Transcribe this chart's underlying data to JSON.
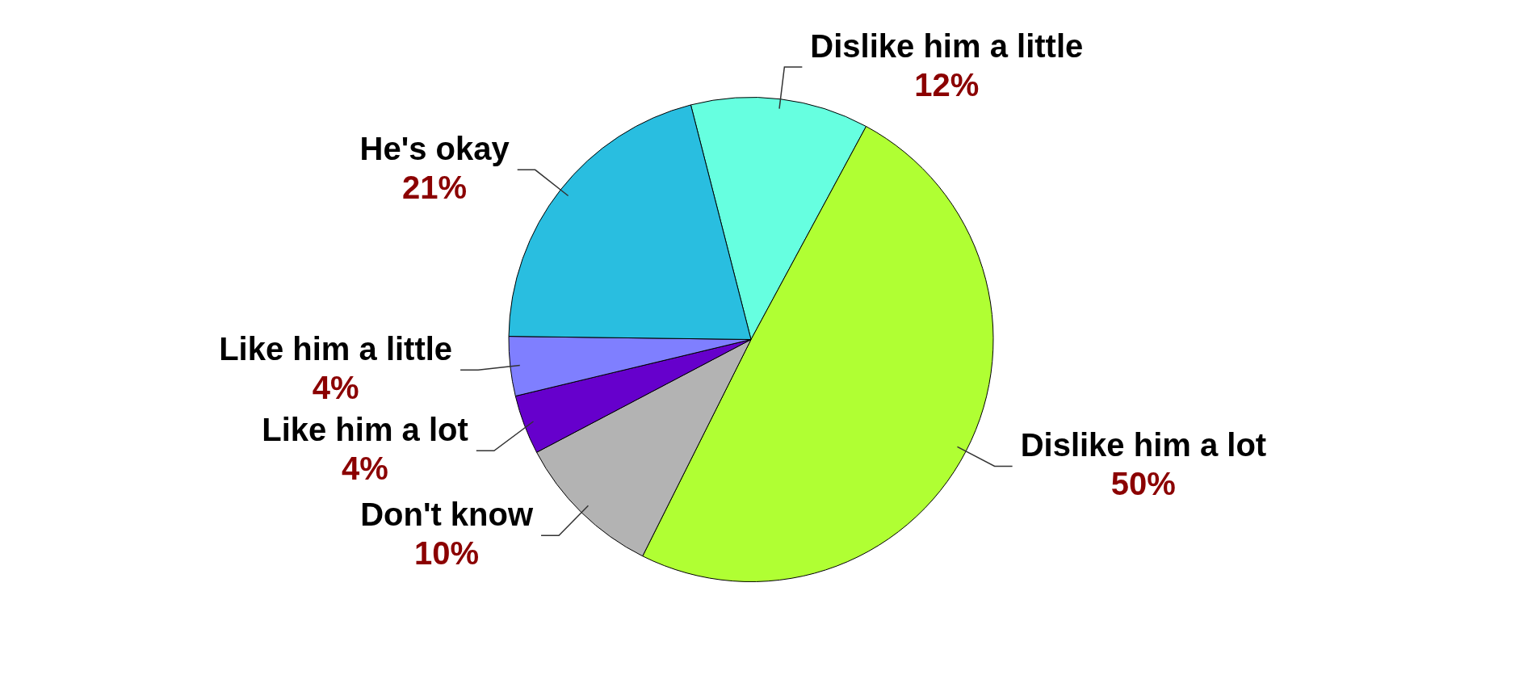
{
  "chart_data": {
    "type": "pie",
    "categories": [
      "Dislike him a little",
      "Dislike him a lot",
      "Don't know",
      "Like him a lot",
      "Like him a little",
      "He's okay"
    ],
    "values": [
      12,
      50,
      10,
      4,
      4,
      21
    ],
    "colors": [
      "#66ffe0",
      "#b0ff33",
      "#b3b3b3",
      "#6600cc",
      "#7f7fff",
      "#29bee0"
    ],
    "value_labels": [
      "12%",
      "50%",
      "10%",
      "4%",
      "4%",
      "21%"
    ]
  }
}
